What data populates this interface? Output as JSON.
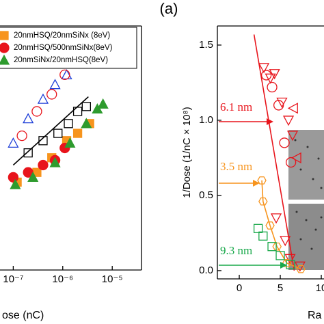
{
  "panel_label": "(a)",
  "chart_data": [
    {
      "type": "scatter",
      "xscale": "log",
      "x_label": "ose (nC)",
      "xlim": [
        5.4e-08,
        3.9e-05
      ],
      "ylim": [
        0,
        1
      ],
      "xticks": [
        {
          "value": 1e-07,
          "label": "10⁻⁷"
        },
        {
          "value": 1e-06,
          "label": "10⁻⁶"
        },
        {
          "value": 1e-05,
          "label": "10⁻⁵"
        }
      ],
      "legend": "upper left",
      "series": [
        {
          "name": "20nmHSQ/20nmSiNx (8eV)",
          "color": "#f7941d",
          "marker": "square",
          "filled": true,
          "x": [
            1.2e-07,
            3e-07,
            6e-07,
            1.2e-06,
            2e-06,
            3.5e-06
          ],
          "values": [
            0.36,
            0.4,
            0.46,
            0.53,
            0.56,
            0.6
          ]
        },
        {
          "name": "20nmHSQ/500nmSiNx(8eV)",
          "color": "#e8141b",
          "marker": "circle",
          "filled": true,
          "x": [
            1e-07,
            2e-07,
            4e-07,
            7e-07,
            1.1e-06
          ],
          "values": [
            0.38,
            0.4,
            0.43,
            0.45,
            0.5
          ]
        },
        {
          "name": "20nmSiNx/20nmHSQ(8eV)",
          "color": "#2e9b2e",
          "marker": "triangle",
          "filled": true,
          "x": [
            1.1e-07,
            2.5e-07,
            7e-07,
            1.4e-06,
            3e-06,
            5e-06,
            6.5e-06
          ],
          "values": [
            0.35,
            0.38,
            0.44,
            0.52,
            0.6,
            0.66,
            0.68
          ]
        },
        {
          "color": "#000000",
          "marker": "square",
          "filled": false,
          "x": [
            2e-07,
            4e-07,
            8e-07,
            1.3e-06,
            2e-06,
            3e-06
          ],
          "values": [
            0.48,
            0.53,
            0.56,
            0.6,
            0.65,
            0.67
          ]
        },
        {
          "color": "#1f3fd8",
          "marker": "triangle",
          "filled": false,
          "x": [
            1e-07,
            2e-07,
            4e-07,
            7e-07,
            1.2e-06
          ],
          "values": [
            0.52,
            0.62,
            0.7,
            0.76,
            0.8
          ]
        },
        {
          "color": "#e8141b",
          "marker": "circle",
          "filled": false,
          "x": [
            1.5e-07,
            3e-07,
            6e-07,
            1.1e-06
          ],
          "values": [
            0.55,
            0.65,
            0.72,
            0.8
          ]
        },
        {
          "color": "#000000",
          "marker": "line",
          "x": [
            1e-07,
            3.3e-06
          ],
          "values": [
            0.43,
            0.71
          ]
        }
      ]
    },
    {
      "type": "scatter",
      "x_label": "Ra",
      "y_label": "1/Dose (1/nC × 10⁸)",
      "xlim": [
        -2.67,
        10.33
      ],
      "ylim": [
        -0.055,
        1.627
      ],
      "xticks": [
        0,
        5,
        10
      ],
      "yticks": [
        {
          "value": 0,
          "label": "0.0"
        },
        0.5,
        {
          "value": 1,
          "label": "1.0"
        },
        1.5
      ],
      "annotations": [
        {
          "text": "6.1 nm",
          "color": "#e8141b"
        },
        {
          "text": "3.5 nm",
          "color": "#f7941d"
        },
        {
          "text": "9.3 nm",
          "color": "#18a84a"
        }
      ],
      "series": [
        {
          "color": "#e8141b",
          "marker": "line",
          "x": [
            1.8,
            6.7
          ],
          "values": [
            1.57,
            0.0
          ]
        },
        {
          "color": "#e8141b",
          "marker": "triangle-down",
          "filled": false,
          "x": [
            3.0,
            3.8,
            4.3,
            5.2,
            6.0,
            6.5,
            4.5,
            5.6,
            6.2,
            7.4
          ],
          "values": [
            1.35,
            1.28,
            1.31,
            1.12,
            1.0,
            0.9,
            0.35,
            0.2,
            0.08,
            0.03
          ]
        },
        {
          "color": "#e8141b",
          "marker": "circle",
          "filled": false,
          "x": [
            3.3,
            4.0,
            4.8,
            5.5,
            6.3
          ],
          "values": [
            1.3,
            1.22,
            1.1,
            0.85,
            0.72
          ]
        },
        {
          "color": "#e8141b",
          "marker": "triangle-left",
          "filled": false,
          "x": [
            6.6,
            7.0
          ],
          "values": [
            1.08,
            0.75
          ]
        },
        {
          "color": "#f7941d",
          "marker": "line",
          "x": [
            2.75,
            2.9,
            3.75,
            4.6,
            5.8,
            7.5
          ],
          "values": [
            0.6,
            0.46,
            0.3,
            0.16,
            0.05,
            0.01
          ]
        },
        {
          "color": "#f7941d",
          "marker": "hexagon",
          "filled": false,
          "x": [
            2.75,
            2.9,
            3.75,
            4.6,
            5.8,
            7.5
          ],
          "values": [
            0.6,
            0.46,
            0.3,
            0.16,
            0.05,
            0.01
          ]
        },
        {
          "color": "#18a84a",
          "marker": "square",
          "filled": false,
          "x": [
            2.3,
            2.9,
            4.0,
            5.0,
            6.25
          ],
          "values": [
            0.28,
            0.23,
            0.16,
            0.1,
            0.04
          ]
        }
      ]
    }
  ]
}
